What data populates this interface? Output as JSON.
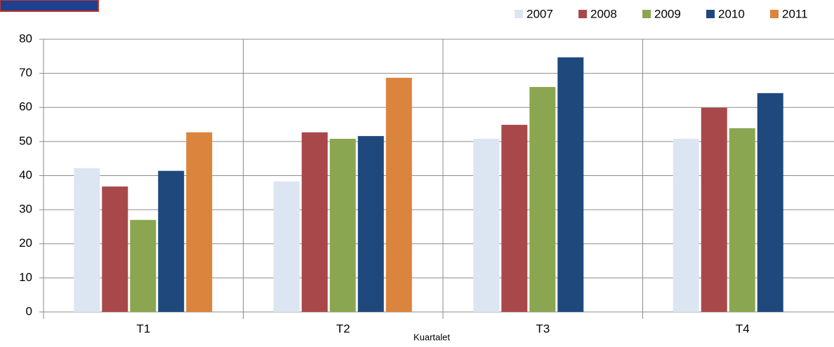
{
  "chart_data": {
    "type": "bar",
    "x_label": "Kuartalet",
    "categories": [
      "T1",
      "T2",
      "T3",
      "T4"
    ],
    "series": [
      {
        "name": "2007",
        "color": "#dce6f2",
        "values": [
          42.2,
          38.3,
          50.8,
          50.8
        ]
      },
      {
        "name": "2008",
        "color": "#a9484a",
        "values": [
          36.8,
          52.7,
          54.9,
          59.9
        ]
      },
      {
        "name": "2009",
        "color": "#8aa650",
        "values": [
          27,
          50.8,
          66,
          53.9
        ]
      },
      {
        "name": "2010",
        "color": "#1f497d",
        "values": [
          41.4,
          51.6,
          74.7,
          64.2
        ]
      },
      {
        "name": "2011",
        "color": "#db843d",
        "values": [
          52.7,
          68.7,
          null,
          null
        ]
      }
    ],
    "ylim": [
      0,
      80
    ],
    "yticks": [
      0,
      10,
      20,
      30,
      40,
      50,
      60,
      70,
      80
    ],
    "grid": true,
    "legend": "top-right"
  }
}
